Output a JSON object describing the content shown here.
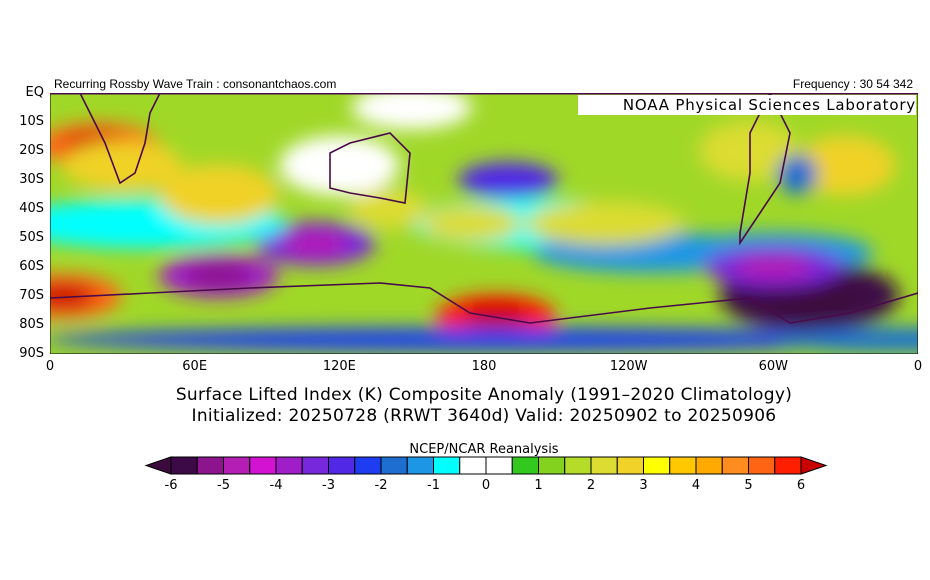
{
  "header": {
    "left": "Recurring Rossby Wave Train : consonantchaos.com",
    "right": "Frequency : 30 54 342",
    "credit": "NOAA Physical Sciences Laboratory"
  },
  "chart_data": {
    "type": "heatmap",
    "title": "Surface Lifted Index (K) Composite Anomaly (1991–2020 Climatology)",
    "subtitle": "Initialized: 20250728 (RRWT 3640d) Valid: 20250902 to 20250906",
    "source": "NCEP/NCAR Reanalysis",
    "lat_ticks": [
      "EQ",
      "10S",
      "20S",
      "30S",
      "40S",
      "50S",
      "60S",
      "70S",
      "80S",
      "90S"
    ],
    "lon_ticks": [
      "0",
      "60E",
      "120E",
      "180",
      "120W",
      "60W",
      "0"
    ],
    "colorbar": {
      "min": -6,
      "max": 6,
      "step": 0.5,
      "labels": [
        "-6",
        "-5",
        "-4",
        "-3",
        "-2",
        "-1",
        "0",
        "1",
        "2",
        "3",
        "4",
        "5",
        "6"
      ],
      "colors": [
        "#3c0a46",
        "#8c148c",
        "#b41eb4",
        "#d214d2",
        "#a01ec8",
        "#7828dc",
        "#5028e6",
        "#1e3cf0",
        "#1e6ed2",
        "#1e96e6",
        "#00ffff",
        "#ffffff",
        "#ffffff",
        "#32c81e",
        "#82d21e",
        "#b4dc28",
        "#dcdc32",
        "#f0d228",
        "#ffff00",
        "#ffc800",
        "#ffaa00",
        "#ff8c1e",
        "#ff6414",
        "#ff1e00"
      ],
      "under": "#3c0a3c",
      "over": "#c80000"
    },
    "features": [
      {
        "name": "positive anomaly southern Africa",
        "lat": -18,
        "lon": 20,
        "value": 5
      },
      {
        "name": "positive anomaly Ross Sea",
        "lat": -77,
        "lon": 185,
        "value": 5.5
      },
      {
        "name": "negative anomaly Weddell/Bellingshausen",
        "lat": -70,
        "lon": -45,
        "value": -6
      },
      {
        "name": "negative anomaly south Indian Ocean",
        "lat": -63,
        "lon": 70,
        "value": -4
      },
      {
        "name": "negative anomaly south of Australia",
        "lat": -52,
        "lon": 110,
        "value": -3.5
      },
      {
        "name": "positive anomaly Weddell coast",
        "lat": -70,
        "lon": 5,
        "value": 5
      }
    ]
  }
}
